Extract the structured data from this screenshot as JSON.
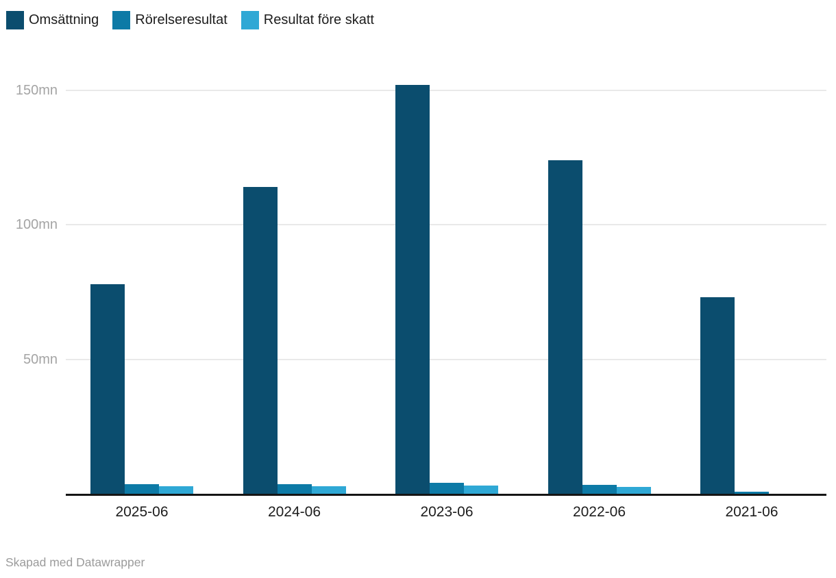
{
  "chart_data": {
    "type": "bar",
    "subtype": "grouped",
    "title": "",
    "xlabel": "",
    "ylabel": "",
    "unit": "mn",
    "categories": [
      "2025-06",
      "2024-06",
      "2023-06",
      "2022-06",
      "2021-06"
    ],
    "series": [
      {
        "name": "Omsättning",
        "color": "#0b4d6e",
        "values": [
          78,
          114,
          152,
          124,
          73
        ]
      },
      {
        "name": "Rörelseresultat",
        "color": "#0d7aa6",
        "values": [
          3.6,
          3.6,
          4.1,
          3.3,
          0.8
        ]
      },
      {
        "name": "Resultat före skatt",
        "color": "#2fa8d5",
        "values": [
          2.8,
          2.8,
          3.1,
          2.5,
          0
        ]
      }
    ],
    "y_ticks": [
      {
        "value": 50,
        "label": "50mn"
      },
      {
        "value": 100,
        "label": "100mn"
      },
      {
        "value": 150,
        "label": "150mn"
      }
    ],
    "ylim": [
      0,
      160
    ],
    "grid": "horizontal-only",
    "legend_position": "top-left",
    "baseline_axis_color": "#151515",
    "gridline_color": "#e9e9e9"
  },
  "footer": {
    "credit": "Skapad med Datawrapper"
  }
}
